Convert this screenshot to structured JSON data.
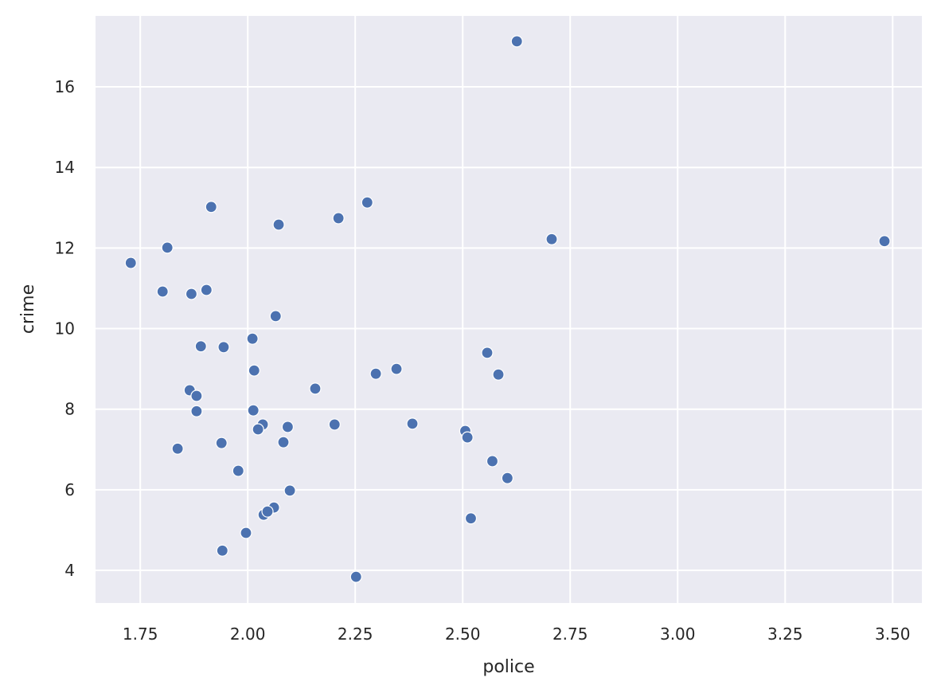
{
  "chart_data": {
    "type": "scatter",
    "x_label": "police",
    "y_label": "crime",
    "x": [
      2.626,
      3.481,
      2.278,
      2.211,
      2.072,
      1.915,
      2.707,
      1.813,
      1.728,
      1.802,
      1.869,
      1.904,
      2.065,
      2.011,
      1.891,
      1.944,
      2.557,
      2.015,
      2.346,
      2.298,
      2.583,
      2.157,
      1.865,
      1.881,
      1.881,
      2.013,
      2.035,
      2.093,
      2.024,
      2.202,
      2.383,
      2.506,
      2.511,
      1.837,
      1.939,
      2.083,
      2.569,
      1.978,
      2.604,
      2.098,
      2.061,
      2.037,
      2.046,
      2.519,
      1.996,
      1.941,
      2.252
    ],
    "values": [
      17.13,
      12.17,
      13.13,
      12.74,
      12.58,
      13.02,
      12.22,
      12.01,
      11.63,
      10.92,
      10.86,
      10.96,
      10.31,
      9.75,
      9.56,
      9.54,
      9.4,
      8.96,
      9.0,
      8.88,
      8.86,
      8.51,
      8.47,
      8.33,
      7.95,
      7.97,
      7.62,
      7.56,
      7.5,
      7.62,
      7.64,
      7.46,
      7.3,
      7.02,
      7.16,
      7.18,
      6.71,
      6.47,
      6.29,
      5.98,
      5.56,
      5.38,
      5.46,
      5.29,
      4.93,
      4.49,
      3.84
    ],
    "color": "#4c72b0",
    "xlim": [
      1.646,
      3.568
    ],
    "ylim": [
      3.19,
      17.76
    ],
    "xticks": [
      1.75,
      {
        "value": 2.0,
        "label": "2.00"
      },
      2.25,
      {
        "value": 2.5,
        "label": "2.50"
      },
      2.75,
      {
        "value": 3.0,
        "label": "3.00"
      },
      3.25,
      {
        "value": 3.5,
        "label": "3.50"
      }
    ],
    "yticks": [
      4,
      6,
      8,
      10,
      12,
      14,
      16
    ],
    "grid": true
  }
}
